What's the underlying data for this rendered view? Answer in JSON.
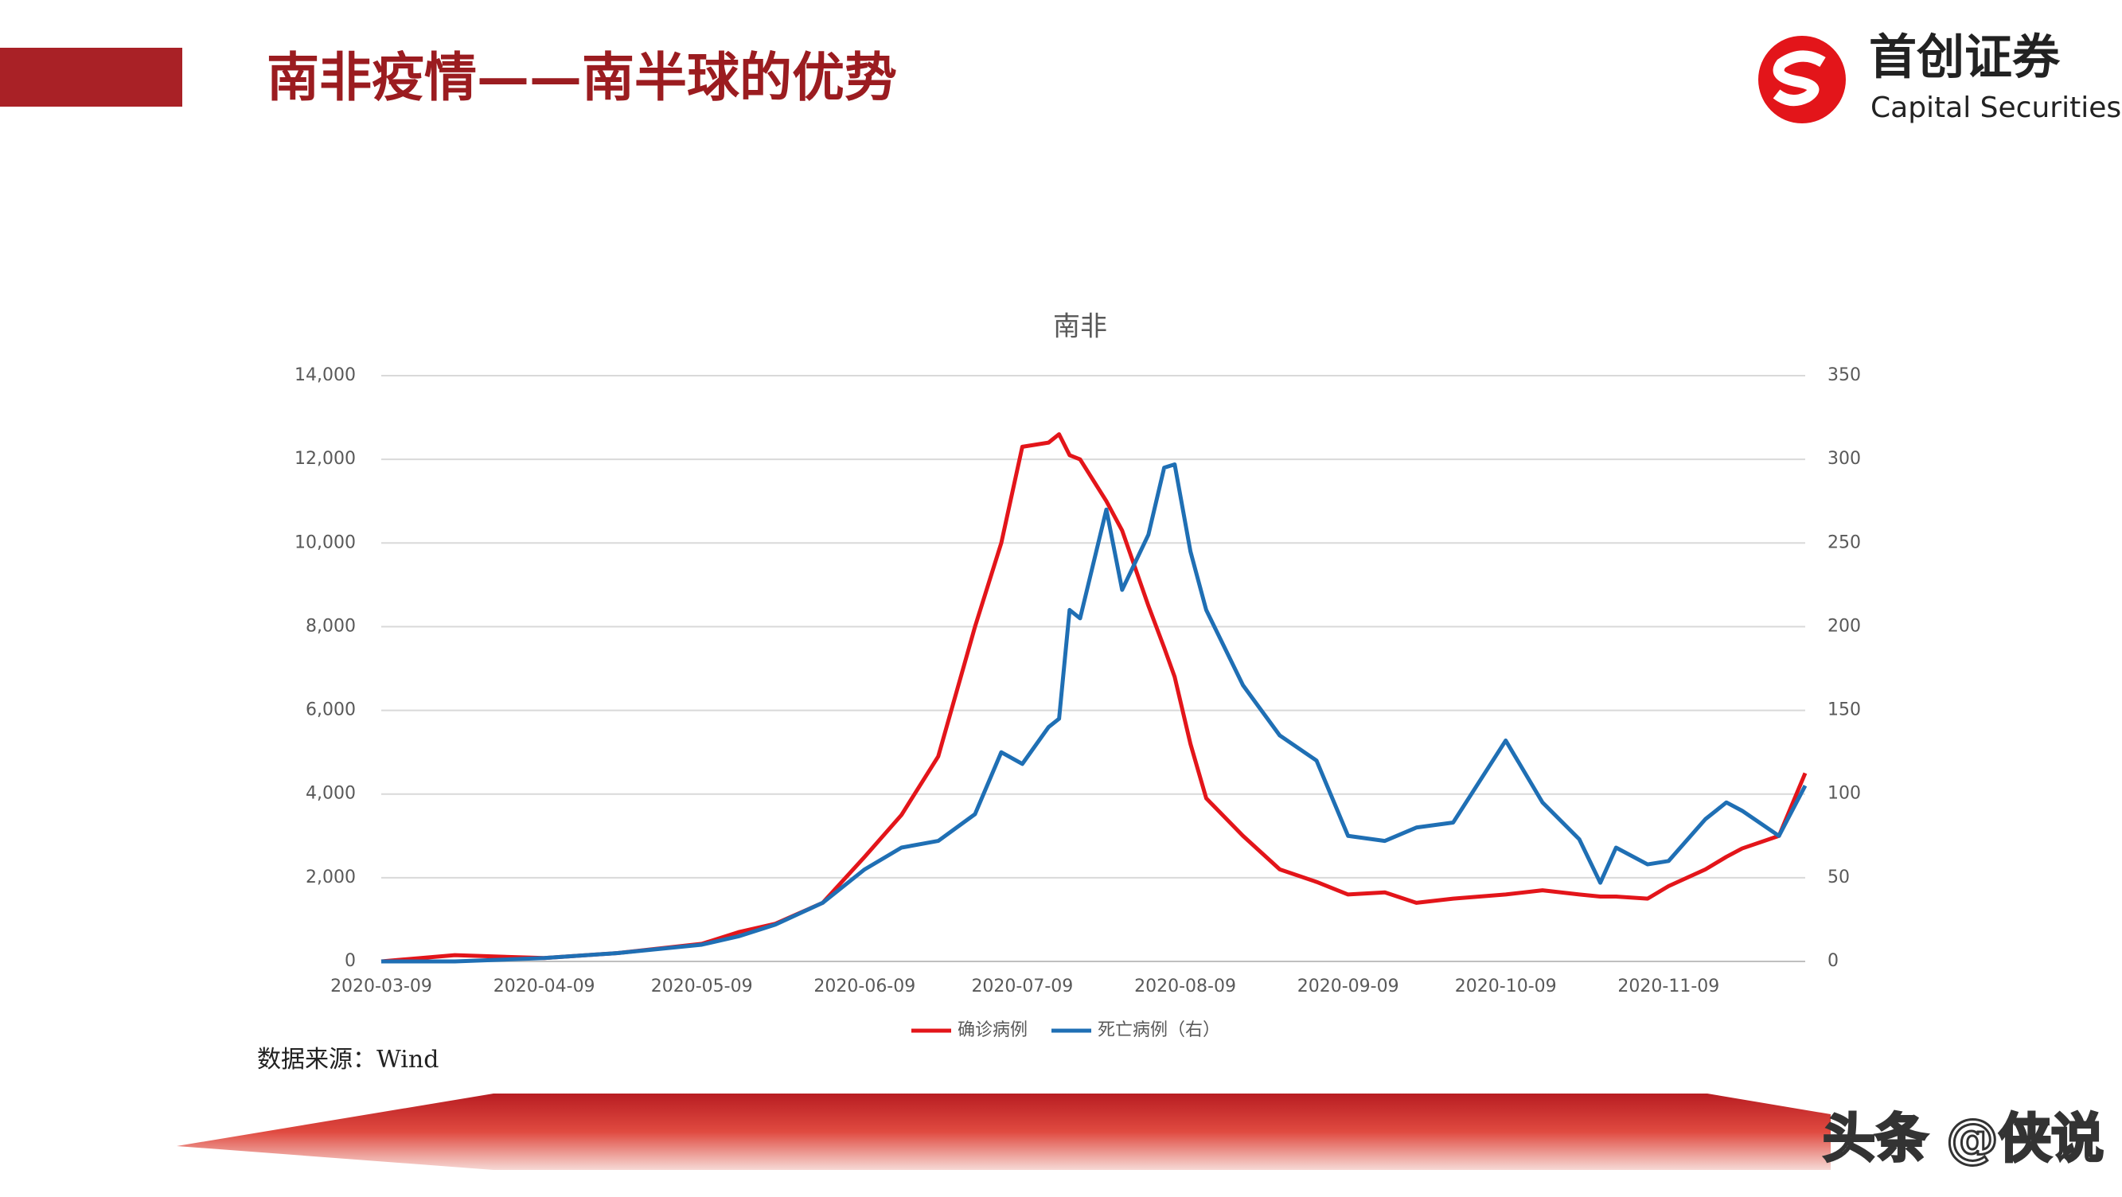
{
  "header": {
    "title": "南非疫情——南半球的优势",
    "logo_cn": "首创证券",
    "logo_en": "Capital Securities"
  },
  "source": "数据来源：Wind",
  "watermark": "头条 @侠说",
  "chart_data": {
    "type": "line",
    "title": "南非",
    "x": [
      "2020-03-09",
      "2020-03-23",
      "2020-04-09",
      "2020-04-23",
      "2020-05-09",
      "2020-05-16",
      "2020-05-23",
      "2020-06-01",
      "2020-06-09",
      "2020-06-16",
      "2020-06-23",
      "2020-06-30",
      "2020-07-05",
      "2020-07-09",
      "2020-07-14",
      "2020-07-16",
      "2020-07-18",
      "2020-07-20",
      "2020-07-25",
      "2020-07-28",
      "2020-08-02",
      "2020-08-05",
      "2020-08-07",
      "2020-08-10",
      "2020-08-13",
      "2020-08-20",
      "2020-08-27",
      "2020-09-03",
      "2020-09-09",
      "2020-09-16",
      "2020-09-22",
      "2020-09-29",
      "2020-10-09",
      "2020-10-16",
      "2020-10-23",
      "2020-10-27",
      "2020-10-30",
      "2020-11-05",
      "2020-11-09",
      "2020-11-16",
      "2020-11-20",
      "2020-11-23",
      "2020-11-30",
      "2020-12-05"
    ],
    "series": [
      {
        "name": "确诊病例",
        "color": "#e3151a",
        "values": [
          0,
          150,
          80,
          200,
          420,
          700,
          900,
          1400,
          2500,
          3500,
          4900,
          8000,
          10000,
          12300,
          12400,
          12600,
          12100,
          12000,
          11000,
          10300,
          8500,
          7500,
          6800,
          5200,
          3900,
          3000,
          2200,
          1900,
          1600,
          1650,
          1400,
          1500,
          1600,
          1700,
          1600,
          1550,
          1550,
          1500,
          1800,
          2200,
          2500,
          2700,
          3000,
          4500
        ]
      },
      {
        "name": "死亡病例（右）",
        "color": "#1f6fb4",
        "axis": "y2",
        "values": [
          0,
          0,
          2,
          5,
          10,
          15,
          22,
          35,
          55,
          68,
          72,
          88,
          125,
          118,
          140,
          145,
          210,
          205,
          270,
          222,
          255,
          295,
          297,
          245,
          210,
          165,
          135,
          120,
          75,
          72,
          80,
          83,
          132,
          95,
          73,
          47,
          68,
          58,
          60,
          85,
          95,
          90,
          75,
          105
        ]
      }
    ],
    "xlim": [
      "2020-03-09",
      "2020-12-05"
    ],
    "xticks": [
      "2020-03-09",
      "2020-04-09",
      "2020-05-09",
      "2020-06-09",
      "2020-07-09",
      "2020-08-09",
      "2020-09-09",
      "2020-10-09",
      "2020-11-09"
    ],
    "ylim": [
      0,
      14000
    ],
    "yticks": [
      0,
      {
        "value": 2000,
        "label": "2,000"
      },
      {
        "value": 4000,
        "label": "4,000"
      },
      {
        "value": 6000,
        "label": "6,000"
      },
      {
        "value": 8000,
        "label": "8,000"
      },
      {
        "value": 10000,
        "label": "10,000"
      },
      {
        "value": 12000,
        "label": "12,000"
      },
      {
        "value": 14000,
        "label": "14,000"
      }
    ],
    "y2lim": [
      0,
      350
    ],
    "y2ticks": [
      0,
      50,
      100,
      150,
      200,
      250,
      300,
      350
    ],
    "grid": true,
    "legend": "bottom"
  }
}
